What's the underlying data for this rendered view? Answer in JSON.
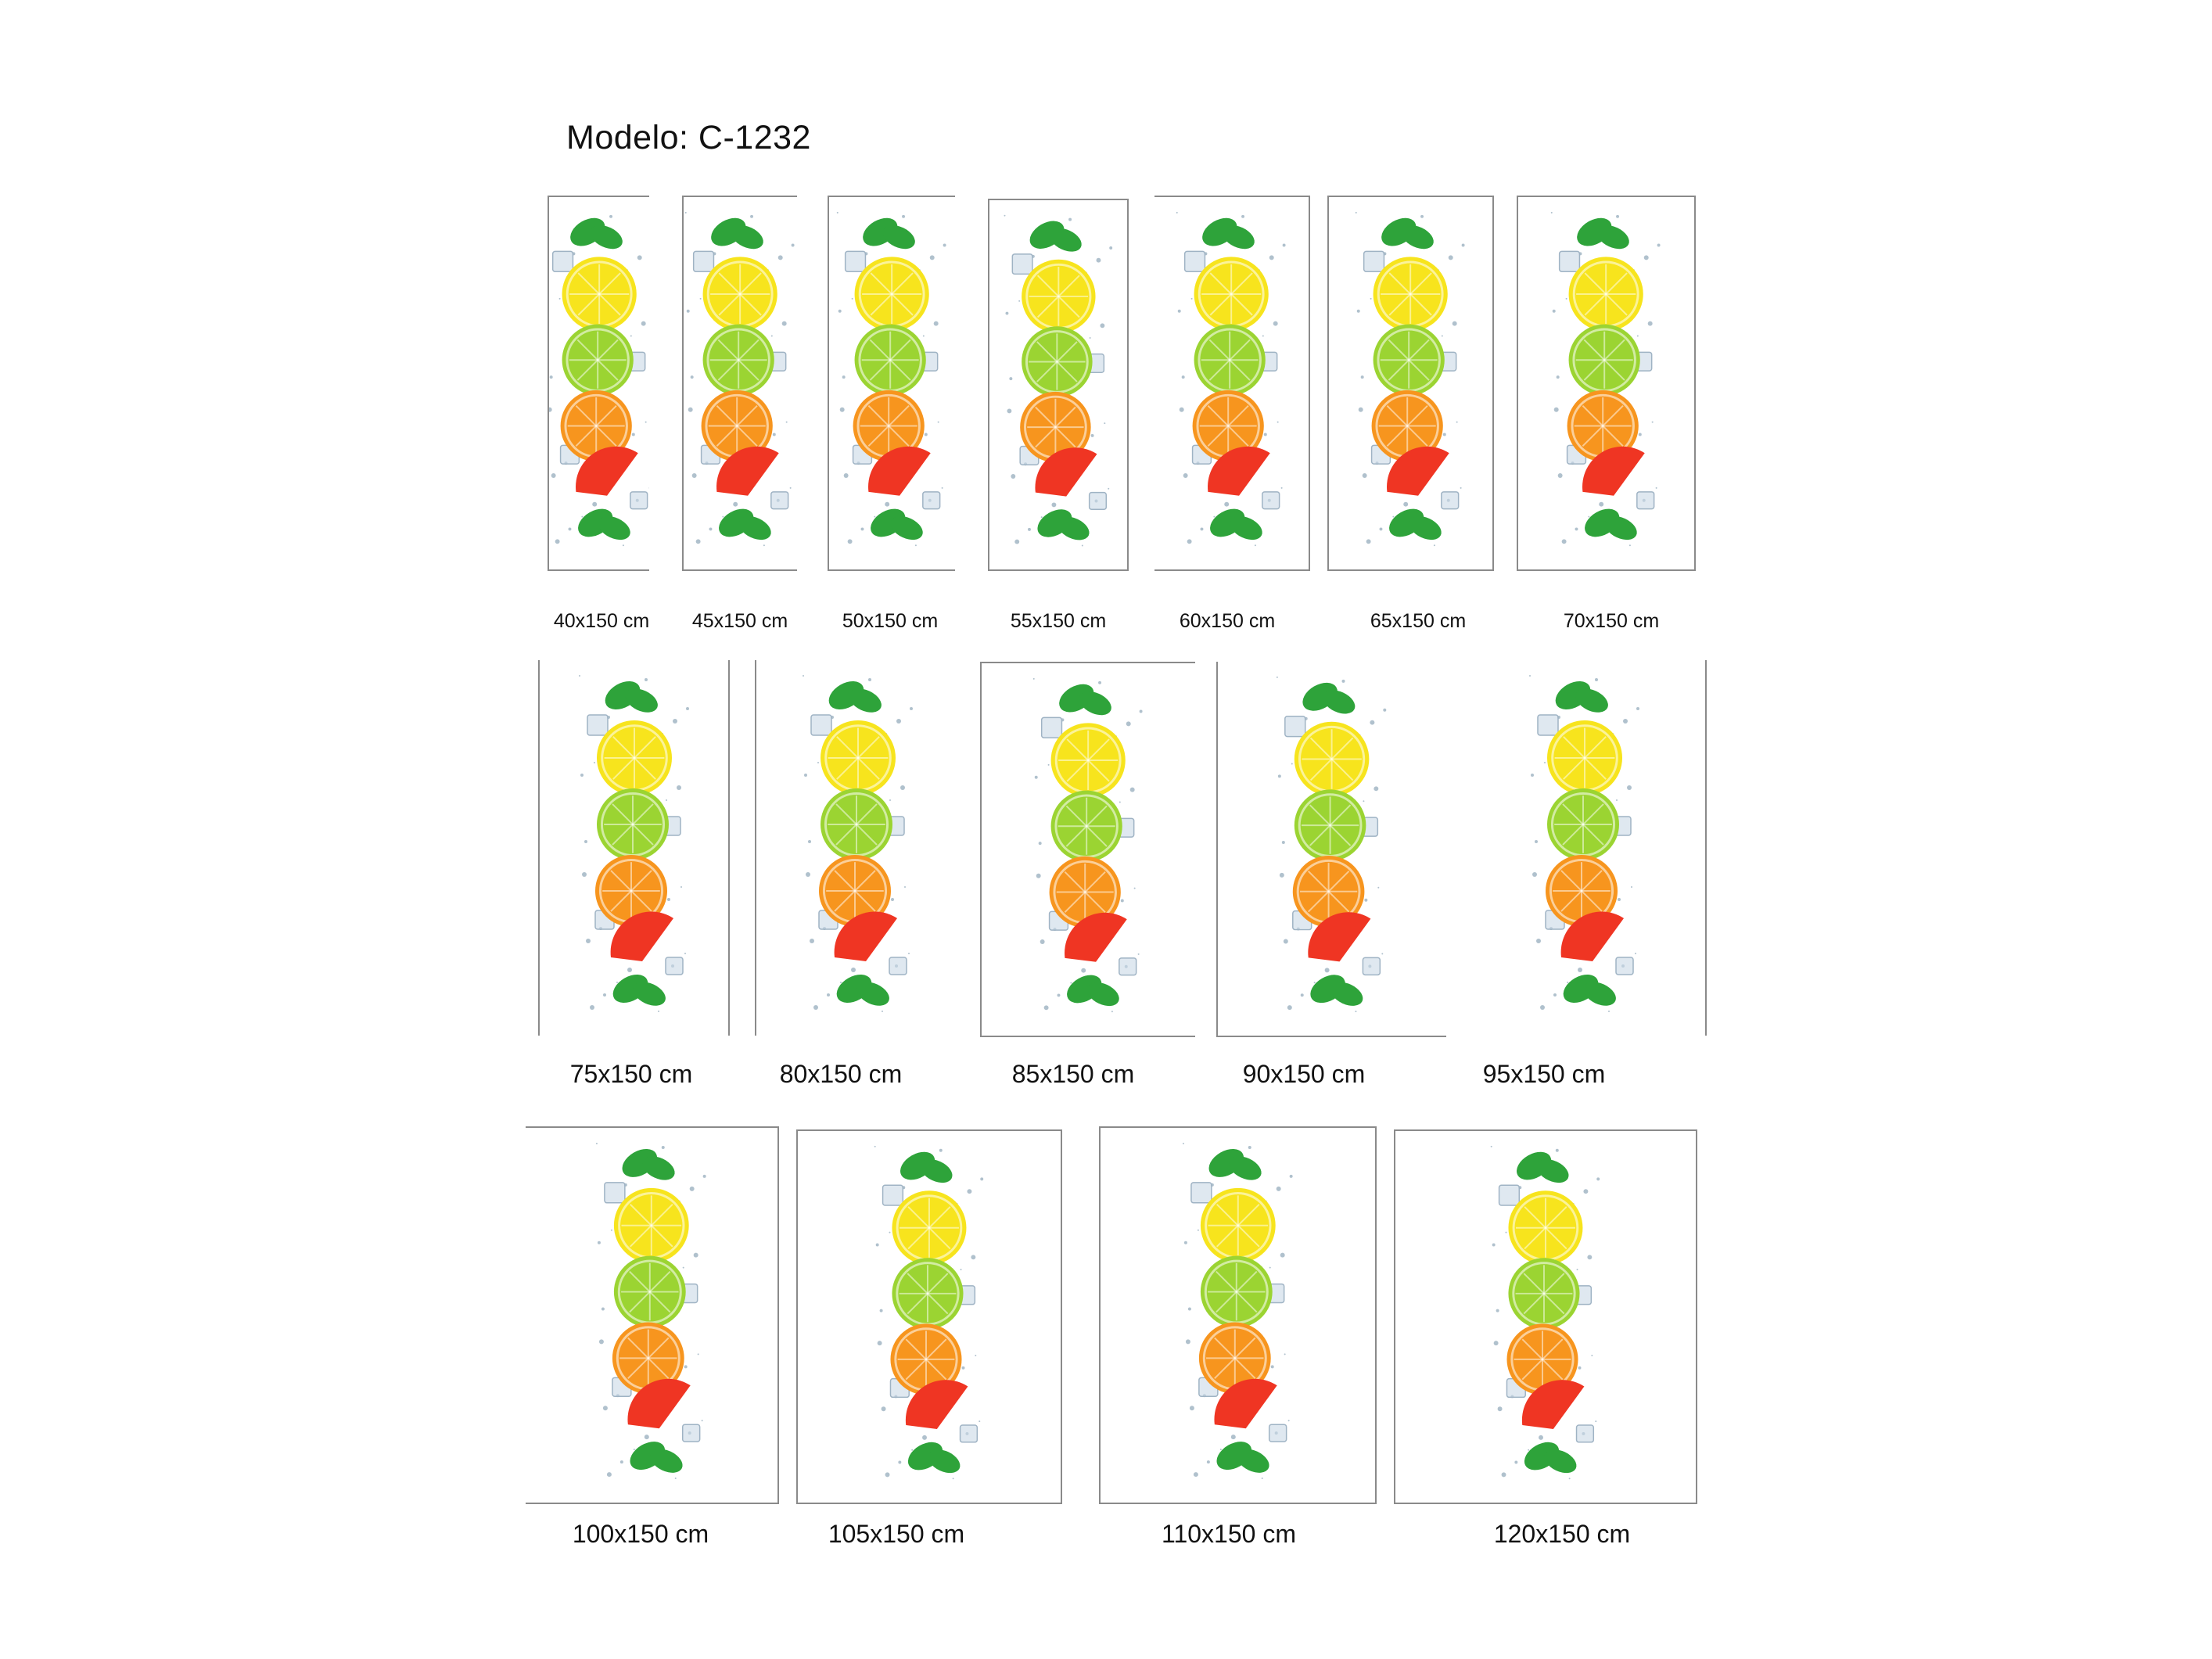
{
  "header": {
    "title": "Modelo: C-1232"
  },
  "colors": {
    "lemon": "#f7e41d",
    "lime": "#9bd432",
    "orange": "#f7951e",
    "grapefruit": "#ef3523",
    "mint": "#2ea33a",
    "ice": "#c9d9e6",
    "border": "#8a8a8a"
  },
  "artwork": {
    "stack_order": [
      "mint-leaves",
      "lemon-slice",
      "lime-slice",
      "orange-slice",
      "grapefruit-slice",
      "mint-leaves"
    ],
    "accents": [
      "ice-cubes",
      "water-splash"
    ]
  },
  "sizes": [
    {
      "label": "40x150 cm"
    },
    {
      "label": "45x150 cm"
    },
    {
      "label": "50x150 cm"
    },
    {
      "label": "55x150 cm"
    },
    {
      "label": "60x150 cm"
    },
    {
      "label": "65x150 cm"
    },
    {
      "label": "70x150 cm"
    },
    {
      "label": "75x150 cm"
    },
    {
      "label": "80x150 cm"
    },
    {
      "label": "85x150 cm"
    },
    {
      "label": "90x150 cm"
    },
    {
      "label": "95x150 cm"
    },
    {
      "label": "100x150 cm"
    },
    {
      "label": "105x150 cm"
    },
    {
      "label": "110x150 cm"
    },
    {
      "label": "120x150 cm"
    }
  ]
}
